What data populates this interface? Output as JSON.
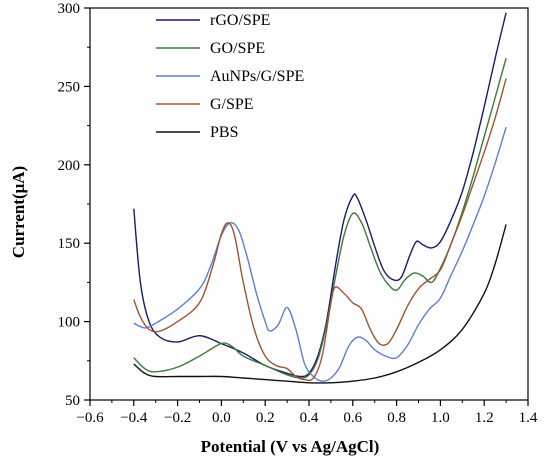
{
  "chart_data": {
    "type": "line",
    "title": "",
    "xlabel": "Potential (V vs Ag/AgCl)",
    "ylabel": "Current(μA)",
    "xlim": [
      -0.6,
      1.4
    ],
    "ylim": [
      50,
      300
    ],
    "xticks": [
      -0.6,
      -0.4,
      -0.2,
      0.0,
      0.2,
      0.4,
      0.6,
      0.8,
      1.0,
      1.2,
      1.4
    ],
    "xtick_labels": [
      "−0.6",
      "−0.4",
      "−0.2",
      "0.0",
      "0.2",
      "0.4",
      "0.6",
      "0.8",
      "1.0",
      "1.2",
      "1.4"
    ],
    "yticks": [
      50,
      100,
      150,
      200,
      250,
      300
    ],
    "ytick_labels": [
      "50",
      "100",
      "150",
      "200",
      "250",
      "300"
    ],
    "grid": false,
    "legend_position": "top-left",
    "series": [
      {
        "name": "rGO/SPE",
        "color": "#1a1a6e",
        "points": [
          [
            -0.4,
            172
          ],
          [
            -0.37,
            125
          ],
          [
            -0.33,
            100
          ],
          [
            -0.28,
            90
          ],
          [
            -0.2,
            87
          ],
          [
            -0.1,
            91
          ],
          [
            0.0,
            86
          ],
          [
            0.1,
            80
          ],
          [
            0.2,
            72
          ],
          [
            0.3,
            67
          ],
          [
            0.36,
            65
          ],
          [
            0.4,
            67
          ],
          [
            0.44,
            78
          ],
          [
            0.48,
            100
          ],
          [
            0.52,
            135
          ],
          [
            0.56,
            165
          ],
          [
            0.6,
            180
          ],
          [
            0.62,
            179
          ],
          [
            0.66,
            165
          ],
          [
            0.7,
            148
          ],
          [
            0.74,
            133
          ],
          [
            0.78,
            127
          ],
          [
            0.82,
            128
          ],
          [
            0.86,
            142
          ],
          [
            0.89,
            151
          ],
          [
            0.92,
            149
          ],
          [
            0.96,
            147
          ],
          [
            1.0,
            151
          ],
          [
            1.05,
            165
          ],
          [
            1.1,
            183
          ],
          [
            1.15,
            208
          ],
          [
            1.2,
            237
          ],
          [
            1.25,
            268
          ],
          [
            1.3,
            297
          ]
        ]
      },
      {
        "name": "GO/SPE",
        "color": "#3a7a3a",
        "points": [
          [
            -0.4,
            77
          ],
          [
            -0.35,
            70
          ],
          [
            -0.3,
            68
          ],
          [
            -0.2,
            71
          ],
          [
            -0.1,
            78
          ],
          [
            0.0,
            86
          ],
          [
            0.05,
            84
          ],
          [
            0.1,
            78
          ],
          [
            0.2,
            72
          ],
          [
            0.3,
            66
          ],
          [
            0.36,
            64
          ],
          [
            0.4,
            66
          ],
          [
            0.44,
            76
          ],
          [
            0.48,
            98
          ],
          [
            0.52,
            128
          ],
          [
            0.56,
            155
          ],
          [
            0.6,
            169
          ],
          [
            0.64,
            163
          ],
          [
            0.68,
            148
          ],
          [
            0.72,
            133
          ],
          [
            0.76,
            124
          ],
          [
            0.8,
            120
          ],
          [
            0.84,
            127
          ],
          [
            0.88,
            131
          ],
          [
            0.92,
            129
          ],
          [
            0.96,
            125
          ],
          [
            1.0,
            134
          ],
          [
            1.05,
            150
          ],
          [
            1.1,
            170
          ],
          [
            1.15,
            193
          ],
          [
            1.2,
            218
          ],
          [
            1.25,
            243
          ],
          [
            1.3,
            268
          ]
        ]
      },
      {
        "name": "AuNPs/G/SPE",
        "color": "#5b7fd6",
        "points": [
          [
            -0.4,
            99
          ],
          [
            -0.35,
            96
          ],
          [
            -0.3,
            99
          ],
          [
            -0.2,
            108
          ],
          [
            -0.1,
            121
          ],
          [
            -0.05,
            135
          ],
          [
            0.0,
            155
          ],
          [
            0.04,
            163
          ],
          [
            0.08,
            158
          ],
          [
            0.12,
            140
          ],
          [
            0.16,
            118
          ],
          [
            0.2,
            100
          ],
          [
            0.22,
            94
          ],
          [
            0.26,
            98
          ],
          [
            0.3,
            109
          ],
          [
            0.34,
            95
          ],
          [
            0.38,
            73
          ],
          [
            0.42,
            65
          ],
          [
            0.46,
            62
          ],
          [
            0.5,
            64
          ],
          [
            0.54,
            71
          ],
          [
            0.58,
            84
          ],
          [
            0.62,
            90
          ],
          [
            0.66,
            88
          ],
          [
            0.7,
            82
          ],
          [
            0.75,
            78
          ],
          [
            0.8,
            77
          ],
          [
            0.85,
            85
          ],
          [
            0.9,
            98
          ],
          [
            0.95,
            108
          ],
          [
            1.0,
            115
          ],
          [
            1.05,
            130
          ],
          [
            1.1,
            145
          ],
          [
            1.15,
            162
          ],
          [
            1.2,
            180
          ],
          [
            1.25,
            201
          ],
          [
            1.3,
            224
          ]
        ]
      },
      {
        "name": "G/SPE",
        "color": "#a0522d",
        "points": [
          [
            -0.4,
            114
          ],
          [
            -0.37,
            103
          ],
          [
            -0.33,
            95
          ],
          [
            -0.28,
            94
          ],
          [
            -0.2,
            100
          ],
          [
            -0.1,
            112
          ],
          [
            -0.04,
            135
          ],
          [
            0.0,
            156
          ],
          [
            0.03,
            163
          ],
          [
            0.06,
            155
          ],
          [
            0.1,
            125
          ],
          [
            0.15,
            95
          ],
          [
            0.2,
            78
          ],
          [
            0.25,
            72
          ],
          [
            0.3,
            70
          ],
          [
            0.34,
            65
          ],
          [
            0.38,
            63
          ],
          [
            0.42,
            64
          ],
          [
            0.46,
            78
          ],
          [
            0.5,
            112
          ],
          [
            0.52,
            122
          ],
          [
            0.56,
            118
          ],
          [
            0.6,
            112
          ],
          [
            0.64,
            108
          ],
          [
            0.68,
            95
          ],
          [
            0.72,
            86
          ],
          [
            0.76,
            86
          ],
          [
            0.8,
            95
          ],
          [
            0.85,
            110
          ],
          [
            0.9,
            121
          ],
          [
            0.95,
            127
          ],
          [
            1.0,
            133
          ],
          [
            1.05,
            150
          ],
          [
            1.1,
            168
          ],
          [
            1.15,
            188
          ],
          [
            1.2,
            208
          ],
          [
            1.25,
            230
          ],
          [
            1.3,
            255
          ]
        ]
      },
      {
        "name": "PBS",
        "color": "#111111",
        "points": [
          [
            -0.4,
            73
          ],
          [
            -0.35,
            67
          ],
          [
            -0.3,
            65
          ],
          [
            -0.2,
            65
          ],
          [
            -0.1,
            65
          ],
          [
            0.0,
            65
          ],
          [
            0.1,
            64
          ],
          [
            0.2,
            63
          ],
          [
            0.3,
            62
          ],
          [
            0.4,
            61
          ],
          [
            0.5,
            61
          ],
          [
            0.6,
            62
          ],
          [
            0.7,
            64
          ],
          [
            0.8,
            68
          ],
          [
            0.9,
            74
          ],
          [
            1.0,
            82
          ],
          [
            1.1,
            95
          ],
          [
            1.2,
            118
          ],
          [
            1.25,
            137
          ],
          [
            1.3,
            162
          ]
        ]
      }
    ]
  }
}
